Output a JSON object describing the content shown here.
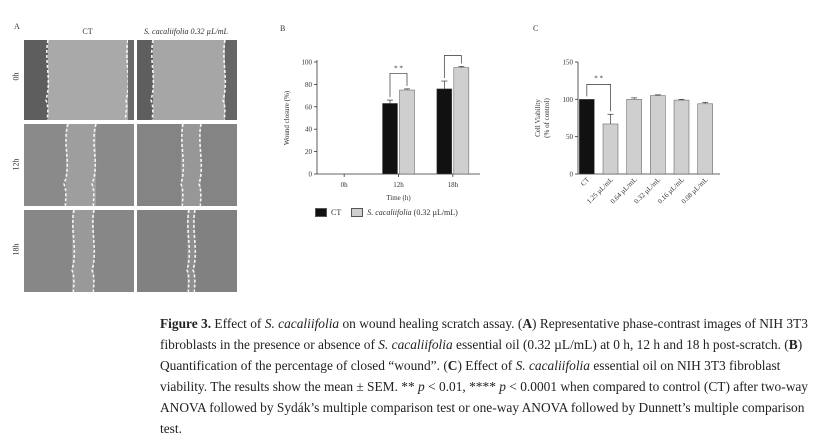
{
  "panelA": {
    "letter": "A",
    "col_labels": [
      "CT",
      "S. cacaliifolia 0.32 µL/mL"
    ],
    "row_labels": [
      "0h",
      "12h",
      "18h"
    ]
  },
  "panelB": {
    "letter": "B"
  },
  "panelC": {
    "letter": "C"
  },
  "chart_data": [
    {
      "type": "bar",
      "panel": "B",
      "categories": [
        "0h",
        "12h",
        "18h"
      ],
      "series": [
        {
          "name": "CT",
          "color": "#111111",
          "values": [
            0,
            63,
            76
          ],
          "errors": [
            0,
            3,
            7
          ]
        },
        {
          "name": "S. cacaliifolia (0.32 µL/mL)",
          "color": "#cfcfcf",
          "values": [
            0,
            75,
            95
          ],
          "errors": [
            0,
            1,
            1
          ]
        }
      ],
      "xlabel": "Time (h)",
      "ylabel": "Wound closure (%)",
      "ylim": [
        0,
        100
      ],
      "yticks": [
        0,
        20,
        40,
        60,
        80,
        100
      ],
      "significance": [
        {
          "category": "12h",
          "label": "* *"
        },
        {
          "category": "18h",
          "label": "* * * *"
        }
      ]
    },
    {
      "type": "bar",
      "panel": "C",
      "categories": [
        "CT",
        "1.25 µL/mL",
        "0.64 µL/mL",
        "0.32 µL/mL",
        "0.16 µL/mL",
        "0.08 µL/mL"
      ],
      "values": [
        100,
        67,
        100,
        105,
        99,
        94
      ],
      "errors": [
        0,
        13,
        2,
        1,
        1,
        2
      ],
      "colors": [
        "#111111",
        "#cfcfcf",
        "#cfcfcf",
        "#cfcfcf",
        "#cfcfcf",
        "#cfcfcf"
      ],
      "ylabel": "Cell Viability (% of control)",
      "ylabel_lines": [
        "Cell Viability",
        "(% of control)"
      ],
      "ylim": [
        0,
        150
      ],
      "yticks": [
        0,
        50,
        100,
        150
      ],
      "significance": [
        {
          "from": "CT",
          "to": "1.25 µL/mL",
          "label": "* *"
        }
      ]
    }
  ],
  "caption": {
    "label": "Figure 3.",
    "species": "S. cacaliifolia",
    "title_rest_1": " Effect of ",
    "title_rest_2": " on wound healing scratch assay. (",
    "A": "A",
    "s1": ") Representative phase-contrast images of NIH 3T3 fibroblasts in the presence or absence of ",
    "s2": " essential oil (0.32 µL/mL) at 0 h, 12 h and 18 h post-scratch. (",
    "B": "B",
    "s3": ") Quantification of the percentage of closed “wound”. (",
    "C": "C",
    "s4": ") Effect of ",
    "s5": " essential oil on NIH 3T3 fibroblast viability. The results show the mean ± SEM. ** ",
    "p1": "p",
    "s6": " < 0.01, **** ",
    "p2": "p",
    "s7": " < 0.0001 when compared to control (CT) after two-way ANOVA followed by Sydák’s multiple comparison test or one-way ANOVA followed by Dunnett’s multiple comparison test."
  }
}
